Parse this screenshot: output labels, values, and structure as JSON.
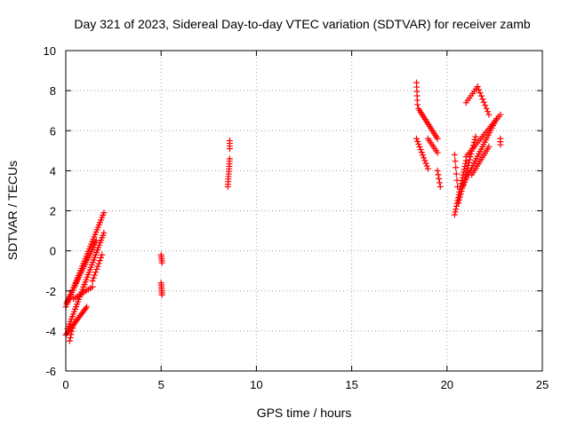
{
  "chart_data": {
    "type": "scatter",
    "title": "Day 321 of 2023, Sidereal Day-to-day VTEC variation (SDTVAR) for receiver zamb",
    "xlabel": "GPS time / hours",
    "ylabel": "SDTVAR / TECUs",
    "xlim": [
      0,
      25
    ],
    "ylim": [
      -6,
      10
    ],
    "xticks": [
      0,
      5,
      10,
      15,
      20,
      25
    ],
    "yticks": [
      -6,
      -4,
      -2,
      0,
      2,
      4,
      6,
      8,
      10
    ],
    "grid": true,
    "marker": "+",
    "color": "#ff0000",
    "segments": [
      {
        "x0": 0.0,
        "y0": -2.8,
        "x1": 2.0,
        "y1": 1.9,
        "n": 40
      },
      {
        "x0": 0.05,
        "y0": -2.6,
        "x1": 1.6,
        "y1": 0.5,
        "n": 30
      },
      {
        "x0": 0.1,
        "y0": -3.9,
        "x1": 2.0,
        "y1": 0.9,
        "n": 40
      },
      {
        "x0": 0.0,
        "y0": -4.2,
        "x1": 1.1,
        "y1": -2.8,
        "n": 20
      },
      {
        "x0": 0.2,
        "y0": -4.5,
        "x1": 0.4,
        "y1": -3.7,
        "n": 6
      },
      {
        "x0": 0.4,
        "y0": -2.4,
        "x1": 1.4,
        "y1": -1.8,
        "n": 10
      },
      {
        "x0": 1.4,
        "y0": -1.5,
        "x1": 1.9,
        "y1": -0.2,
        "n": 10
      },
      {
        "x0": 5.0,
        "y0": -0.2,
        "x1": 5.05,
        "y1": -0.6,
        "n": 5
      },
      {
        "x0": 5.0,
        "y0": -1.6,
        "x1": 5.05,
        "y1": -2.2,
        "n": 7
      },
      {
        "x0": 8.5,
        "y0": 3.2,
        "x1": 8.6,
        "y1": 4.6,
        "n": 12
      },
      {
        "x0": 8.6,
        "y0": 5.1,
        "x1": 8.6,
        "y1": 5.5,
        "n": 4
      },
      {
        "x0": 18.4,
        "y0": 8.4,
        "x1": 18.45,
        "y1": 7.3,
        "n": 6
      },
      {
        "x0": 18.5,
        "y0": 7.1,
        "x1": 19.5,
        "y1": 5.6,
        "n": 18
      },
      {
        "x0": 18.4,
        "y0": 5.6,
        "x1": 19.0,
        "y1": 4.1,
        "n": 12
      },
      {
        "x0": 19.0,
        "y0": 5.6,
        "x1": 19.5,
        "y1": 4.9,
        "n": 8
      },
      {
        "x0": 19.5,
        "y0": 4.0,
        "x1": 19.65,
        "y1": 3.2,
        "n": 5
      },
      {
        "x0": 20.4,
        "y0": 4.8,
        "x1": 20.55,
        "y1": 3.2,
        "n": 6
      },
      {
        "x0": 20.4,
        "y0": 1.8,
        "x1": 21.0,
        "y1": 4.5,
        "n": 20
      },
      {
        "x0": 20.6,
        "y0": 2.4,
        "x1": 21.5,
        "y1": 5.7,
        "n": 24
      },
      {
        "x0": 20.8,
        "y0": 3.2,
        "x1": 22.6,
        "y1": 6.6,
        "n": 30
      },
      {
        "x0": 21.0,
        "y0": 4.7,
        "x1": 22.8,
        "y1": 6.8,
        "n": 22
      },
      {
        "x0": 21.3,
        "y0": 3.8,
        "x1": 22.2,
        "y1": 5.2,
        "n": 14
      },
      {
        "x0": 21.0,
        "y0": 7.4,
        "x1": 21.6,
        "y1": 8.2,
        "n": 8
      },
      {
        "x0": 21.6,
        "y0": 8.2,
        "x1": 22.2,
        "y1": 6.8,
        "n": 10
      },
      {
        "x0": 22.8,
        "y0": 5.6,
        "x1": 22.8,
        "y1": 5.3,
        "n": 3
      }
    ]
  }
}
